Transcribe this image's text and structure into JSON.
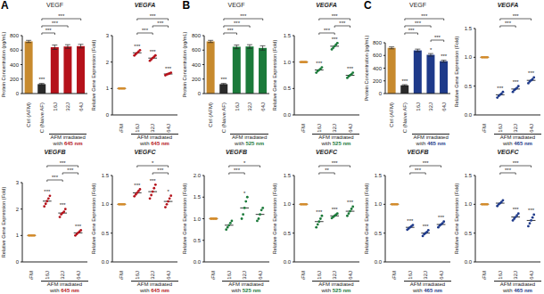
{
  "chart_data": [
    {
      "panel": "A",
      "type": "bar",
      "title": "VEGF",
      "ylabel": "Protein Concentration (pg/mL)",
      "xlabel": "AFM irradiated with 645 nm",
      "categories": [
        "Ctrl (AFM)",
        "NC (Naive AF)",
        "16J",
        "32J",
        "64J"
      ],
      "values": [
        720,
        130,
        640,
        650,
        655
      ],
      "errors": [
        15,
        10,
        30,
        25,
        25
      ],
      "colors": [
        "#c78a2e",
        "#2a2a2a",
        "#b5121b",
        "#b5121b",
        "#b5121b"
      ],
      "ylim": [
        0,
        800
      ],
      "yticks": [
        0,
        200,
        400,
        600,
        800
      ],
      "stars": [
        null,
        "***",
        null,
        null,
        null
      ],
      "brackets": [
        {
          "from": "NC (Naive AF)",
          "to": "16J",
          "label": "***"
        },
        {
          "from": "NC (Naive AF)",
          "to": "32J",
          "label": "***"
        },
        {
          "from": "NC (Naive AF)",
          "to": "64J",
          "label": "***"
        }
      ]
    },
    {
      "panel": "A",
      "type": "scatter",
      "title": "VEGFA",
      "ylabel": "Relative Gene Expression (Fold)",
      "xlabel": "AFM irradiated with 645 nm",
      "categories": [
        "AFM",
        "16J",
        "32J",
        "64J"
      ],
      "values": [
        1,
        2.35,
        2.15,
        1.55
      ],
      "points": [
        [
          1,
          1,
          1,
          1,
          1
        ],
        [
          2.25,
          2.3,
          2.35,
          2.4,
          2.45
        ],
        [
          2.05,
          2.1,
          2.15,
          2.2,
          2.25
        ],
        [
          1.5,
          1.53,
          1.55,
          1.57,
          1.6
        ]
      ],
      "colors": [
        "#d38b2b",
        "#b5121b",
        "#b5121b",
        "#b5121b"
      ],
      "ylim": [
        0,
        3
      ],
      "yticks": [
        0,
        1,
        2,
        3
      ],
      "stars": [
        null,
        "***",
        "***",
        "***"
      ],
      "brackets": [
        {
          "from": "16J",
          "to": "32J",
          "label": "***"
        },
        {
          "from": "32J",
          "to": "64J",
          "label": "***"
        },
        {
          "from": "16J",
          "to": "64J",
          "label": "***"
        }
      ]
    },
    {
      "panel": "A",
      "type": "scatter",
      "title": "VEGFB",
      "ylabel": "Relative Gene Expression (Fold)",
      "xlabel": "AFM irradiated with 645 nm",
      "categories": [
        "AFM",
        "16J",
        "32J",
        "64J"
      ],
      "values": [
        1,
        2.3,
        1.85,
        1.1
      ],
      "points": [
        [
          1,
          1,
          1,
          1,
          1
        ],
        [
          2.1,
          2.2,
          2.3,
          2.4,
          2.5
        ],
        [
          1.7,
          1.8,
          1.85,
          1.9,
          2.0
        ],
        [
          1.0,
          1.05,
          1.1,
          1.15,
          1.2
        ]
      ],
      "colors": [
        "#d38b2b",
        "#b5121b",
        "#b5121b",
        "#b5121b"
      ],
      "ylim": [
        0,
        3
      ],
      "yticks": [
        0,
        1,
        2,
        3
      ],
      "stars": [
        null,
        "***",
        "***",
        "***"
      ],
      "brackets": [
        {
          "from": "16J",
          "to": "32J",
          "label": "***"
        },
        {
          "from": "32J",
          "to": "64J",
          "label": "***"
        },
        {
          "from": "16J",
          "to": "64J",
          "label": "***"
        }
      ]
    },
    {
      "panel": "A",
      "type": "scatter",
      "title": "VEGFC",
      "ylabel": "Relative Gene Expression (Fold)",
      "xlabel": "AFM irradiated with 645 nm",
      "categories": [
        "AFM",
        "16J",
        "32J",
        "64J"
      ],
      "values": [
        1,
        1.2,
        1.22,
        1.05
      ],
      "points": [
        [
          1,
          1,
          1,
          1,
          1
        ],
        [
          1.14,
          1.17,
          1.2,
          1.23,
          1.26
        ],
        [
          1.1,
          1.16,
          1.22,
          1.28,
          1.34
        ],
        [
          0.95,
          1.0,
          1.05,
          1.1,
          1.15
        ]
      ],
      "colors": [
        "#d38b2b",
        "#b5121b",
        "#b5121b",
        "#b5121b"
      ],
      "ylim": [
        0,
        1.5
      ],
      "yticks": [
        {
          "value": 0,
          "label": "0.0"
        },
        {
          "value": 0.5,
          "label": "0.5"
        },
        {
          "value": 1,
          "label": "1.0"
        },
        {
          "value": 1.5,
          "label": "1.5"
        }
      ],
      "stars": [
        null,
        "***",
        "***",
        "*"
      ],
      "brackets": [
        {
          "from": "32J",
          "to": "64J",
          "label": "***"
        },
        {
          "from": "16J",
          "to": "64J",
          "label": "*"
        }
      ]
    },
    {
      "panel": "B",
      "type": "bar",
      "title": "VEGF",
      "ylabel": "Protein Concentration (pg/mL)",
      "xlabel": "AFM irradiated with 525 nm",
      "categories": [
        "Ctrl (AFM)",
        "NC (Naive AF)",
        "16J",
        "32J",
        "64J"
      ],
      "values": [
        720,
        130,
        645,
        650,
        630
      ],
      "errors": [
        15,
        10,
        25,
        25,
        30
      ],
      "colors": [
        "#c78a2e",
        "#2a2a2a",
        "#1b7a3a",
        "#1b7a3a",
        "#1b7a3a"
      ],
      "ylim": [
        0,
        800
      ],
      "yticks": [
        0,
        200,
        400,
        600,
        800
      ],
      "stars": [
        null,
        "***",
        null,
        null,
        null
      ],
      "brackets": [
        {
          "from": "NC (Naive AF)",
          "to": "16J",
          "label": "***"
        },
        {
          "from": "NC (Naive AF)",
          "to": "32J",
          "label": "***"
        },
        {
          "from": "NC (Naive AF)",
          "to": "64J",
          "label": "***"
        }
      ]
    },
    {
      "panel": "B",
      "type": "scatter",
      "title": "VEGFA",
      "ylabel": "Relative Gene Expression (Fold)",
      "xlabel": "AFM irradiated with 525 nm",
      "categories": [
        "AFM",
        "16J",
        "32J",
        "64J"
      ],
      "values": [
        1,
        0.85,
        1.3,
        0.75
      ],
      "points": [
        [
          1,
          1,
          1,
          1,
          1
        ],
        [
          0.8,
          0.83,
          0.85,
          0.87,
          0.9
        ],
        [
          1.24,
          1.27,
          1.3,
          1.33,
          1.36
        ],
        [
          0.7,
          0.73,
          0.75,
          0.77,
          0.8
        ]
      ],
      "colors": [
        "#d38b2b",
        "#1b7a3a",
        "#1b7a3a",
        "#1b7a3a"
      ],
      "ylim": [
        0,
        1.5
      ],
      "yticks": [
        {
          "value": 0,
          "label": "0.0"
        },
        {
          "value": 0.5,
          "label": "0.5"
        },
        {
          "value": 1,
          "label": "1.0"
        },
        {
          "value": 1.5,
          "label": "1.5"
        }
      ],
      "stars": [
        null,
        "***",
        "***",
        "***"
      ],
      "brackets": [
        {
          "from": "16J",
          "to": "32J",
          "label": "***"
        },
        {
          "from": "32J",
          "to": "64J",
          "label": "***"
        },
        {
          "from": "16J",
          "to": "64J",
          "label": "***"
        }
      ]
    },
    {
      "panel": "B",
      "type": "scatter",
      "title": "VEGFB",
      "ylabel": "Relative Gene Expression (Fold)",
      "xlabel": "AFM irradiated with 525 nm",
      "categories": [
        "AFM",
        "16J",
        "32J",
        "64J"
      ],
      "values": [
        1,
        0.85,
        1.25,
        1.1
      ],
      "points": [
        [
          1,
          1,
          1,
          1,
          1
        ],
        [
          0.75,
          0.8,
          0.85,
          0.9,
          0.95
        ],
        [
          1.0,
          1.1,
          1.25,
          1.4,
          1.5
        ],
        [
          0.95,
          1.0,
          1.1,
          1.2,
          1.25
        ]
      ],
      "colors": [
        "#d38b2b",
        "#1b7a3a",
        "#1b7a3a",
        "#1b7a3a"
      ],
      "ylim": [
        0,
        2
      ],
      "yticks": [
        {
          "value": 0,
          "label": "0.0"
        },
        {
          "value": 0.5,
          "label": "0.5"
        },
        {
          "value": 1,
          "label": "1.0"
        },
        {
          "value": 1.5,
          "label": "1.5"
        },
        {
          "value": 2,
          "label": "2.0"
        }
      ],
      "stars": [
        null,
        null,
        "*",
        null
      ],
      "brackets": [
        {
          "from": "16J",
          "to": "32J",
          "label": "***"
        },
        {
          "from": "16J",
          "to": "64J",
          "label": "*"
        }
      ]
    },
    {
      "panel": "B",
      "type": "scatter",
      "title": "VEGFC",
      "ylabel": "Relative Gene Expression (Fold)",
      "xlabel": "AFM irradiated with 525 nm",
      "categories": [
        "AFM",
        "16J",
        "32J",
        "64J"
      ],
      "values": [
        1,
        0.7,
        0.8,
        0.88
      ],
      "points": [
        [
          1,
          1,
          1,
          1,
          1
        ],
        [
          0.6,
          0.65,
          0.7,
          0.75,
          0.8
        ],
        [
          0.76,
          0.78,
          0.8,
          0.82,
          0.84
        ],
        [
          0.8,
          0.84,
          0.88,
          0.92,
          0.96
        ]
      ],
      "colors": [
        "#d38b2b",
        "#1b7a3a",
        "#1b7a3a",
        "#1b7a3a"
      ],
      "ylim": [
        0,
        1.5
      ],
      "yticks": [
        {
          "value": 0,
          "label": "0.0"
        },
        {
          "value": 0.5,
          "label": "0.5"
        },
        {
          "value": 1,
          "label": "1.0"
        },
        {
          "value": 1.5,
          "label": "1.5"
        }
      ],
      "stars": [
        null,
        "***",
        "***",
        "***"
      ],
      "brackets": [
        {
          "from": "16J",
          "to": "32J",
          "label": "**"
        },
        {
          "from": "16J",
          "to": "64J",
          "label": "***"
        }
      ]
    },
    {
      "panel": "C",
      "type": "bar",
      "title": "VEGF",
      "ylabel": "Protein Concentration (pg/mL)",
      "xlabel": "AFM irradiated with 465 nm",
      "categories": [
        "Ctrl (AFM)",
        "NC (Naive AF)",
        "16J",
        "32J",
        "64J"
      ],
      "values": [
        720,
        130,
        680,
        610,
        510
      ],
      "errors": [
        15,
        10,
        20,
        20,
        15
      ],
      "colors": [
        "#c78a2e",
        "#2a2a2a",
        "#1e3a8a",
        "#1e3a8a",
        "#1e3a8a"
      ],
      "ylim": [
        0,
        800
      ],
      "yticks": [
        0,
        200,
        400,
        600,
        800
      ],
      "stars": [
        null,
        "***",
        null,
        "*",
        "***"
      ],
      "brackets": [
        {
          "from": "32J",
          "to": "64J",
          "label": "***"
        },
        {
          "from": "NC (Naive AF)",
          "to": "16J",
          "label": "***"
        },
        {
          "from": "NC (Naive AF)",
          "to": "32J",
          "label": "***"
        },
        {
          "from": "NC (Naive AF)",
          "to": "64J",
          "label": "***"
        }
      ]
    },
    {
      "panel": "C",
      "type": "scatter",
      "title": "VEGFA",
      "ylabel": "Relative Gene Expression (Fold)",
      "xlabel": "AFM irradiated with 465 nm",
      "categories": [
        "AFM",
        "16J",
        "32J",
        "64J"
      ],
      "values": [
        1,
        0.35,
        0.45,
        0.6
      ],
      "points": [
        [
          1,
          1,
          1,
          1,
          1
        ],
        [
          0.3,
          0.33,
          0.35,
          0.37,
          0.4
        ],
        [
          0.4,
          0.43,
          0.45,
          0.47,
          0.5
        ],
        [
          0.55,
          0.58,
          0.6,
          0.62,
          0.65
        ]
      ],
      "colors": [
        "#d38b2b",
        "#1e3a8a",
        "#1e3a8a",
        "#1e3a8a"
      ],
      "ylim": [
        0,
        1.5
      ],
      "yticks": [
        {
          "value": 0,
          "label": "0.0"
        },
        {
          "value": 0.5,
          "label": "0.5"
        },
        {
          "value": 1,
          "label": "1.0"
        },
        {
          "value": 1.5,
          "label": "1.5"
        }
      ],
      "stars": [
        null,
        "***",
        "***",
        "***"
      ],
      "brackets": [
        {
          "from": "16J",
          "to": "32J",
          "label": "***"
        },
        {
          "from": "16J",
          "to": "64J",
          "label": "***"
        }
      ]
    },
    {
      "panel": "C",
      "type": "scatter",
      "title": "VEGFB",
      "ylabel": "Relative Gene Expression (Fold)",
      "xlabel": "AFM irradiated with 465 nm",
      "categories": [
        "AFM",
        "16J",
        "32J",
        "64J"
      ],
      "values": [
        1,
        0.6,
        0.5,
        0.65
      ],
      "points": [
        [
          1,
          1,
          1,
          1,
          1
        ],
        [
          0.56,
          0.58,
          0.6,
          0.62,
          0.64
        ],
        [
          0.45,
          0.48,
          0.5,
          0.52,
          0.55
        ],
        [
          0.6,
          0.63,
          0.65,
          0.67,
          0.7
        ]
      ],
      "colors": [
        "#d38b2b",
        "#1e3a8a",
        "#1e3a8a",
        "#1e3a8a"
      ],
      "ylim": [
        0,
        1.5
      ],
      "yticks": [
        {
          "value": 0,
          "label": "0.0"
        },
        {
          "value": 0.5,
          "label": "0.5"
        },
        {
          "value": 1,
          "label": "1.0"
        },
        {
          "value": 1.5,
          "label": "1.5"
        }
      ],
      "stars": [
        null,
        "***",
        "***",
        "***"
      ],
      "brackets": [
        {
          "from": "16J",
          "to": "32J",
          "label": "***"
        },
        {
          "from": "16J",
          "to": "64J",
          "label": "***"
        }
      ]
    },
    {
      "panel": "C",
      "type": "scatter",
      "title": "VEGFC",
      "ylabel": "Relative Gene Expression (Fold)",
      "xlabel": "AFM irradiated with 465 nm",
      "categories": [
        "AFM",
        "16J",
        "32J",
        "64J"
      ],
      "values": [
        1,
        1.02,
        0.78,
        0.72
      ],
      "points": [
        [
          1,
          1,
          1,
          1,
          1
        ],
        [
          0.97,
          1.0,
          1.02,
          1.04,
          1.07
        ],
        [
          0.72,
          0.75,
          0.78,
          0.81,
          0.84
        ],
        [
          0.62,
          0.67,
          0.72,
          0.77,
          0.82
        ]
      ],
      "colors": [
        "#d38b2b",
        "#1e3a8a",
        "#1e3a8a",
        "#1e3a8a"
      ],
      "ylim": [
        0,
        1.5
      ],
      "yticks": [
        {
          "value": 0,
          "label": "0.0"
        },
        {
          "value": 0.5,
          "label": "0.5"
        },
        {
          "value": 1,
          "label": "1.0"
        },
        {
          "value": 1.5,
          "label": "1.5"
        }
      ],
      "stars": [
        null,
        null,
        "***",
        "***"
      ],
      "brackets": [
        {
          "from": "16J",
          "to": "32J",
          "label": "***"
        },
        {
          "from": "16J",
          "to": "64J",
          "label": "***"
        }
      ]
    }
  ]
}
